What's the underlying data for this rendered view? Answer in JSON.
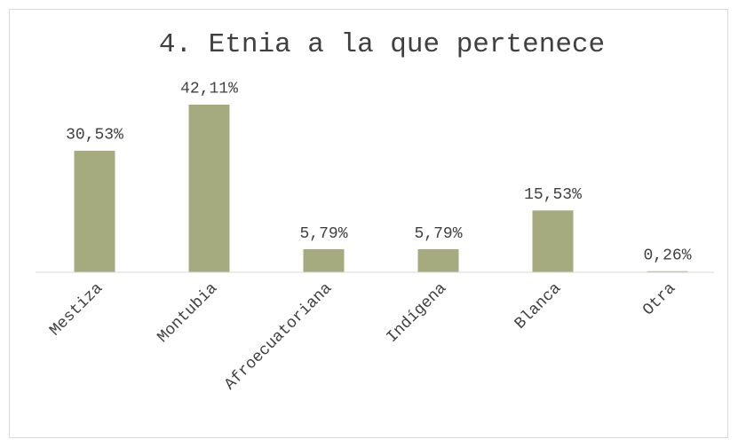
{
  "chart_data": {
    "type": "bar",
    "title": "4. Etnia a la que pertenece",
    "categories": [
      "Mestiza",
      "Montubia",
      "Afroecuatoriana",
      "Indígena",
      "Blanca",
      "Otra"
    ],
    "values": [
      30.53,
      42.11,
      5.79,
      5.79,
      15.53,
      0.26
    ],
    "value_labels": [
      "30,53%",
      "42,11%",
      "5,79%",
      "5,79%",
      "15,53%",
      "0,26%"
    ],
    "color": "#a6ab7f",
    "ylim": [
      0,
      45
    ]
  }
}
